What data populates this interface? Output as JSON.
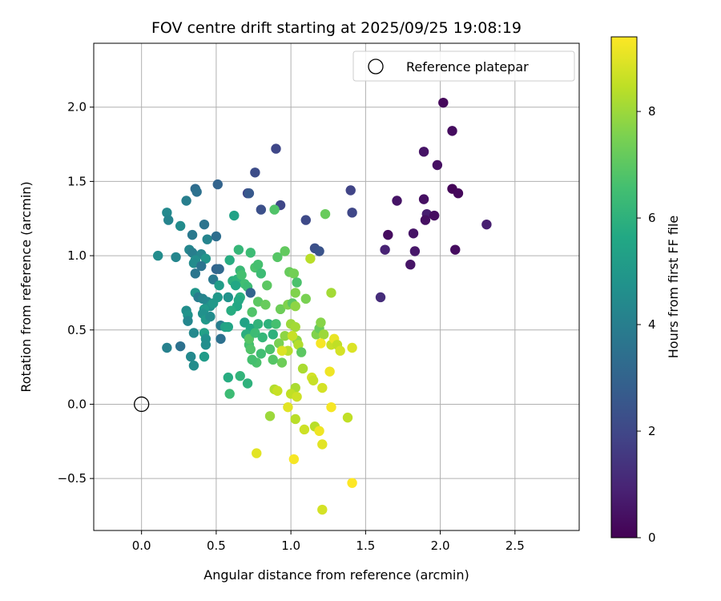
{
  "chart_data": {
    "type": "scatter",
    "title": "FOV centre drift starting at 2025/09/25 19:08:19",
    "xlabel": "Angular distance from reference (arcmin)",
    "ylabel": "Rotation from reference (arcmin)",
    "xlim": [
      -0.32,
      2.93
    ],
    "ylim": [
      -0.85,
      2.43
    ],
    "xticks": [
      0.0,
      0.5,
      1.0,
      1.5,
      2.0,
      2.5
    ],
    "xtick_labels": [
      "0.0",
      "0.5",
      "1.0",
      "1.5",
      "2.0",
      "2.5"
    ],
    "yticks": [
      -0.5,
      0.0,
      0.5,
      1.0,
      1.5,
      2.0
    ],
    "ytick_labels": [
      "−0.5",
      "0.0",
      "0.5",
      "1.0",
      "1.5",
      "2.0"
    ],
    "grid": true,
    "legend": {
      "placement": "top-right",
      "entries": [
        "Reference platepar"
      ]
    },
    "reference_point": {
      "x": 0.0,
      "y": 0.0
    },
    "colorbar": {
      "label": "Hours from first FF file",
      "colormap": "viridis",
      "range": [
        0,
        9.4
      ],
      "ticks": [
        0,
        2,
        4,
        6,
        8
      ],
      "tick_labels": [
        "0",
        "2",
        "4",
        "6",
        "8"
      ]
    },
    "points": [
      {
        "x": 2.02,
        "y": 2.03,
        "h": 0.2
      },
      {
        "x": 2.08,
        "y": 1.84,
        "h": 0.3
      },
      {
        "x": 1.89,
        "y": 1.7,
        "h": 0.5
      },
      {
        "x": 1.98,
        "y": 1.61,
        "h": 0.4
      },
      {
        "x": 2.08,
        "y": 1.45,
        "h": 0.1
      },
      {
        "x": 2.12,
        "y": 1.42,
        "h": 0.2
      },
      {
        "x": 1.71,
        "y": 1.37,
        "h": 0.5
      },
      {
        "x": 1.89,
        "y": 1.38,
        "h": 0.4
      },
      {
        "x": 1.91,
        "y": 1.28,
        "h": 0.8
      },
      {
        "x": 1.96,
        "y": 1.27,
        "h": 0.3
      },
      {
        "x": 1.9,
        "y": 1.24,
        "h": 0.4
      },
      {
        "x": 2.31,
        "y": 1.21,
        "h": 0.8
      },
      {
        "x": 1.65,
        "y": 1.14,
        "h": 0.3
      },
      {
        "x": 1.82,
        "y": 1.15,
        "h": 0.5
      },
      {
        "x": 1.63,
        "y": 1.04,
        "h": 0.9
      },
      {
        "x": 1.83,
        "y": 1.03,
        "h": 0.6
      },
      {
        "x": 2.1,
        "y": 1.04,
        "h": 0.3
      },
      {
        "x": 1.8,
        "y": 0.94,
        "h": 0.5
      },
      {
        "x": 1.6,
        "y": 0.72,
        "h": 1.2
      },
      {
        "x": 0.9,
        "y": 1.72,
        "h": 2.0
      },
      {
        "x": 0.76,
        "y": 1.56,
        "h": 2.2
      },
      {
        "x": 1.4,
        "y": 1.44,
        "h": 1.9
      },
      {
        "x": 0.71,
        "y": 1.42,
        "h": 2.0
      },
      {
        "x": 0.72,
        "y": 1.42,
        "h": 2.6
      },
      {
        "x": 0.93,
        "y": 1.34,
        "h": 2.0
      },
      {
        "x": 0.8,
        "y": 1.31,
        "h": 2.3
      },
      {
        "x": 1.41,
        "y": 1.29,
        "h": 2.0
      },
      {
        "x": 1.1,
        "y": 1.24,
        "h": 2.1
      },
      {
        "x": 1.16,
        "y": 1.05,
        "h": 2.3
      },
      {
        "x": 1.19,
        "y": 1.03,
        "h": 2.4
      },
      {
        "x": 0.51,
        "y": 1.48,
        "h": 3.0
      },
      {
        "x": 0.36,
        "y": 1.45,
        "h": 3.3
      },
      {
        "x": 0.37,
        "y": 1.43,
        "h": 3.5
      },
      {
        "x": 0.3,
        "y": 1.37,
        "h": 4.0
      },
      {
        "x": 0.17,
        "y": 1.29,
        "h": 4.4
      },
      {
        "x": 0.18,
        "y": 1.24,
        "h": 4.2
      },
      {
        "x": 0.26,
        "y": 1.2,
        "h": 4.5
      },
      {
        "x": 0.42,
        "y": 1.21,
        "h": 3.6
      },
      {
        "x": 0.34,
        "y": 1.14,
        "h": 3.8
      },
      {
        "x": 0.44,
        "y": 1.11,
        "h": 4.2
      },
      {
        "x": 0.5,
        "y": 1.13,
        "h": 3.4
      },
      {
        "x": 0.32,
        "y": 1.04,
        "h": 4.3
      },
      {
        "x": 0.34,
        "y": 1.02,
        "h": 4.0
      },
      {
        "x": 0.4,
        "y": 1.01,
        "h": 4.3
      },
      {
        "x": 0.11,
        "y": 1.0,
        "h": 4.5
      },
      {
        "x": 0.23,
        "y": 0.99,
        "h": 4.3
      },
      {
        "x": 0.36,
        "y": 0.97,
        "h": 4.6
      },
      {
        "x": 0.43,
        "y": 0.98,
        "h": 4.9
      },
      {
        "x": 0.35,
        "y": 0.95,
        "h": 4.5
      },
      {
        "x": 0.4,
        "y": 0.93,
        "h": 3.6
      },
      {
        "x": 0.36,
        "y": 0.88,
        "h": 3.7
      },
      {
        "x": 0.5,
        "y": 0.91,
        "h": 3.0
      },
      {
        "x": 0.52,
        "y": 0.91,
        "h": 3.2
      },
      {
        "x": 0.48,
        "y": 0.84,
        "h": 3.8
      },
      {
        "x": 0.52,
        "y": 0.8,
        "h": 5.2
      },
      {
        "x": 0.36,
        "y": 0.75,
        "h": 4.9
      },
      {
        "x": 0.38,
        "y": 0.72,
        "h": 3.9
      },
      {
        "x": 0.41,
        "y": 0.71,
        "h": 4.2
      },
      {
        "x": 0.44,
        "y": 0.69,
        "h": 4.3
      },
      {
        "x": 0.51,
        "y": 0.72,
        "h": 5.0
      },
      {
        "x": 0.46,
        "y": 0.66,
        "h": 4.7
      },
      {
        "x": 0.42,
        "y": 0.64,
        "h": 5.0
      },
      {
        "x": 0.3,
        "y": 0.63,
        "h": 4.6
      },
      {
        "x": 0.31,
        "y": 0.6,
        "h": 4.8
      },
      {
        "x": 0.41,
        "y": 0.61,
        "h": 4.7
      },
      {
        "x": 0.43,
        "y": 0.57,
        "h": 5.0
      },
      {
        "x": 0.46,
        "y": 0.59,
        "h": 4.5
      },
      {
        "x": 0.31,
        "y": 0.56,
        "h": 4.3
      },
      {
        "x": 0.53,
        "y": 0.53,
        "h": 4.0
      },
      {
        "x": 0.42,
        "y": 0.48,
        "h": 5.3
      },
      {
        "x": 0.35,
        "y": 0.48,
        "h": 4.4
      },
      {
        "x": 0.43,
        "y": 0.44,
        "h": 4.7
      },
      {
        "x": 0.53,
        "y": 0.44,
        "h": 3.5
      },
      {
        "x": 0.17,
        "y": 0.38,
        "h": 4.1
      },
      {
        "x": 0.26,
        "y": 0.39,
        "h": 3.5
      },
      {
        "x": 0.43,
        "y": 0.4,
        "h": 4.6
      },
      {
        "x": 0.33,
        "y": 0.32,
        "h": 4.4
      },
      {
        "x": 0.42,
        "y": 0.32,
        "h": 5.1
      },
      {
        "x": 0.35,
        "y": 0.26,
        "h": 4.5
      },
      {
        "x": 0.56,
        "y": 0.52,
        "h": 5.4
      },
      {
        "x": 0.59,
        "y": 0.97,
        "h": 5.8
      },
      {
        "x": 0.62,
        "y": 1.27,
        "h": 5.4
      },
      {
        "x": 0.65,
        "y": 1.04,
        "h": 6.2
      },
      {
        "x": 0.73,
        "y": 1.02,
        "h": 6.4
      },
      {
        "x": 0.89,
        "y": 1.31,
        "h": 6.8
      },
      {
        "x": 0.61,
        "y": 0.83,
        "h": 5.9
      },
      {
        "x": 0.66,
        "y": 0.9,
        "h": 6.3
      },
      {
        "x": 0.64,
        "y": 0.84,
        "h": 6.0
      },
      {
        "x": 0.67,
        "y": 0.87,
        "h": 6.6
      },
      {
        "x": 0.69,
        "y": 0.81,
        "h": 6.5
      },
      {
        "x": 0.71,
        "y": 0.79,
        "h": 6.4
      },
      {
        "x": 0.73,
        "y": 0.75,
        "h": 3.0
      },
      {
        "x": 0.76,
        "y": 0.92,
        "h": 6.7
      },
      {
        "x": 0.78,
        "y": 0.94,
        "h": 6.6
      },
      {
        "x": 0.8,
        "y": 0.88,
        "h": 6.4
      },
      {
        "x": 0.66,
        "y": 0.72,
        "h": 5.9
      },
      {
        "x": 0.65,
        "y": 0.7,
        "h": 5.7
      },
      {
        "x": 0.64,
        "y": 0.66,
        "h": 5.6
      },
      {
        "x": 0.6,
        "y": 0.63,
        "h": 5.8
      },
      {
        "x": 0.58,
        "y": 0.52,
        "h": 5.5
      },
      {
        "x": 0.69,
        "y": 0.55,
        "h": 5.4
      },
      {
        "x": 0.74,
        "y": 0.62,
        "h": 6.8
      },
      {
        "x": 0.73,
        "y": 0.51,
        "h": 5.6
      },
      {
        "x": 0.7,
        "y": 0.47,
        "h": 5.9
      },
      {
        "x": 0.72,
        "y": 0.4,
        "h": 6.6
      },
      {
        "x": 0.72,
        "y": 0.44,
        "h": 6.9
      },
      {
        "x": 0.76,
        "y": 0.48,
        "h": 6.4
      },
      {
        "x": 0.78,
        "y": 0.54,
        "h": 6.1
      },
      {
        "x": 0.78,
        "y": 0.69,
        "h": 7.0
      },
      {
        "x": 0.83,
        "y": 0.67,
        "h": 7.2
      },
      {
        "x": 0.84,
        "y": 0.8,
        "h": 7.0
      },
      {
        "x": 0.81,
        "y": 0.45,
        "h": 6.2
      },
      {
        "x": 0.85,
        "y": 0.54,
        "h": 6.0
      },
      {
        "x": 0.8,
        "y": 0.34,
        "h": 6.5
      },
      {
        "x": 0.77,
        "y": 0.28,
        "h": 6.7
      },
      {
        "x": 0.73,
        "y": 0.37,
        "h": 6.8
      },
      {
        "x": 0.74,
        "y": 0.3,
        "h": 6.6
      },
      {
        "x": 0.58,
        "y": 0.18,
        "h": 5.8
      },
      {
        "x": 0.66,
        "y": 0.19,
        "h": 6.1
      },
      {
        "x": 0.71,
        "y": 0.14,
        "h": 6.0
      },
      {
        "x": 0.59,
        "y": 0.07,
        "h": 6.4
      },
      {
        "x": 0.86,
        "y": 0.37,
        "h": 6.7
      },
      {
        "x": 0.9,
        "y": 0.54,
        "h": 6.6
      },
      {
        "x": 0.88,
        "y": 0.47,
        "h": 6.0
      },
      {
        "x": 0.91,
        "y": 0.99,
        "h": 6.9
      },
      {
        "x": 0.96,
        "y": 1.03,
        "h": 7.1
      },
      {
        "x": 0.99,
        "y": 0.89,
        "h": 7.2
      },
      {
        "x": 1.02,
        "y": 0.88,
        "h": 7.4
      },
      {
        "x": 1.04,
        "y": 0.82,
        "h": 6.7
      },
      {
        "x": 1.03,
        "y": 0.75,
        "h": 7.6
      },
      {
        "x": 0.93,
        "y": 0.64,
        "h": 7.3
      },
      {
        "x": 0.98,
        "y": 0.67,
        "h": 7.6
      },
      {
        "x": 1.01,
        "y": 0.68,
        "h": 7.0
      },
      {
        "x": 1.03,
        "y": 0.66,
        "h": 7.8
      },
      {
        "x": 1.1,
        "y": 0.71,
        "h": 7.5
      },
      {
        "x": 1.23,
        "y": 1.28,
        "h": 7.2
      },
      {
        "x": 0.92,
        "y": 0.41,
        "h": 7.5
      },
      {
        "x": 0.94,
        "y": 0.28,
        "h": 7.3
      },
      {
        "x": 0.96,
        "y": 0.46,
        "h": 7.8
      },
      {
        "x": 1.0,
        "y": 0.54,
        "h": 8.0
      },
      {
        "x": 1.03,
        "y": 0.52,
        "h": 8.1
      },
      {
        "x": 1.04,
        "y": 0.43,
        "h": 7.8
      },
      {
        "x": 1.05,
        "y": 0.4,
        "h": 8.3
      },
      {
        "x": 0.98,
        "y": 0.36,
        "h": 8.4
      },
      {
        "x": 1.01,
        "y": 0.46,
        "h": 8.6
      },
      {
        "x": 1.13,
        "y": 0.98,
        "h": 8.4
      },
      {
        "x": 1.17,
        "y": 0.47,
        "h": 7.6
      },
      {
        "x": 1.19,
        "y": 0.51,
        "h": 7.2
      },
      {
        "x": 1.2,
        "y": 0.55,
        "h": 7.7
      },
      {
        "x": 1.22,
        "y": 0.47,
        "h": 8.0
      },
      {
        "x": 1.2,
        "y": 0.41,
        "h": 9.3
      },
      {
        "x": 1.27,
        "y": 0.75,
        "h": 8.1
      },
      {
        "x": 1.27,
        "y": 0.4,
        "h": 8.6
      },
      {
        "x": 1.29,
        "y": 0.44,
        "h": 9.1
      },
      {
        "x": 1.31,
        "y": 0.4,
        "h": 8.5
      },
      {
        "x": 1.33,
        "y": 0.36,
        "h": 8.8
      },
      {
        "x": 1.41,
        "y": 0.38,
        "h": 8.9
      },
      {
        "x": 1.08,
        "y": 0.24,
        "h": 8.2
      },
      {
        "x": 1.14,
        "y": 0.18,
        "h": 8.8
      },
      {
        "x": 1.15,
        "y": 0.16,
        "h": 8.6
      },
      {
        "x": 1.26,
        "y": 0.22,
        "h": 9.2
      },
      {
        "x": 0.89,
        "y": 0.1,
        "h": 8.3
      },
      {
        "x": 0.91,
        "y": 0.09,
        "h": 8.6
      },
      {
        "x": 1.03,
        "y": 0.11,
        "h": 8.2
      },
      {
        "x": 1.0,
        "y": 0.07,
        "h": 8.5
      },
      {
        "x": 1.04,
        "y": 0.05,
        "h": 8.7
      },
      {
        "x": 1.21,
        "y": 0.11,
        "h": 8.8
      },
      {
        "x": 0.98,
        "y": -0.02,
        "h": 9.0
      },
      {
        "x": 1.27,
        "y": -0.02,
        "h": 9.3
      },
      {
        "x": 0.86,
        "y": -0.08,
        "h": 8.0
      },
      {
        "x": 1.03,
        "y": -0.1,
        "h": 8.4
      },
      {
        "x": 1.38,
        "y": -0.09,
        "h": 8.5
      },
      {
        "x": 1.09,
        "y": -0.17,
        "h": 8.7
      },
      {
        "x": 1.16,
        "y": -0.15,
        "h": 8.4
      },
      {
        "x": 1.19,
        "y": -0.18,
        "h": 9.2
      },
      {
        "x": 1.21,
        "y": -0.27,
        "h": 9.0
      },
      {
        "x": 0.77,
        "y": -0.33,
        "h": 9.0
      },
      {
        "x": 1.02,
        "y": -0.37,
        "h": 9.3
      },
      {
        "x": 1.41,
        "y": -0.53,
        "h": 9.4
      },
      {
        "x": 1.21,
        "y": -0.71,
        "h": 8.8
      },
      {
        "x": 0.63,
        "y": 0.8,
        "h": 5.6
      },
      {
        "x": 0.48,
        "y": 0.68,
        "h": 5.0
      },
      {
        "x": 0.58,
        "y": 0.72,
        "h": 4.8
      },
      {
        "x": 0.88,
        "y": 0.3,
        "h": 6.9
      },
      {
        "x": 0.94,
        "y": 0.36,
        "h": 8.9
      },
      {
        "x": 1.07,
        "y": 0.35,
        "h": 7.0
      }
    ]
  }
}
